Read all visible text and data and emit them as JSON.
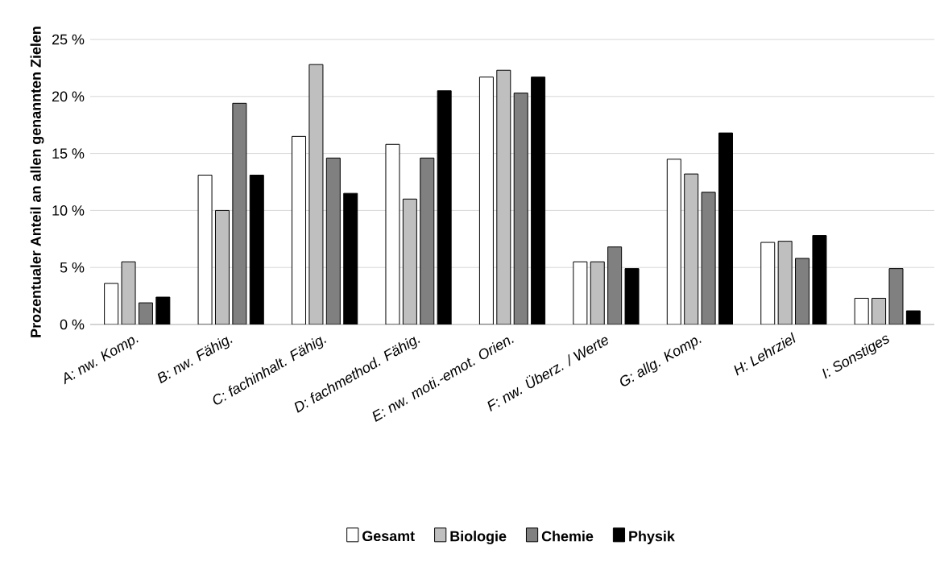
{
  "chart_data": {
    "type": "bar",
    "ylabel": "Prozentualer Anteil an allen genannten Zielen",
    "categories": [
      "A: nw. Komp.",
      "B: nw. Fähig.",
      "C: fachinhalt. Fähig.",
      "D: fachmethod. Fähig.",
      "E: nw. moti.-emot. Orien.",
      "F: nw. Überz. / Werte",
      "G: allg. Komp.",
      "H: Lehrziel",
      "I: Sonstiges"
    ],
    "series": [
      {
        "name": "Gesamt",
        "color": "#ffffff",
        "values": [
          3.6,
          13.1,
          16.5,
          15.8,
          21.7,
          5.5,
          14.5,
          7.2,
          2.3
        ]
      },
      {
        "name": "Biologie",
        "color": "#bfbfbf",
        "values": [
          5.5,
          10.0,
          22.8,
          11.0,
          22.3,
          5.5,
          13.2,
          7.3,
          2.3
        ]
      },
      {
        "name": "Chemie",
        "color": "#808080",
        "values": [
          1.9,
          19.4,
          14.6,
          14.6,
          20.3,
          6.8,
          11.6,
          5.8,
          4.9
        ]
      },
      {
        "name": "Physik",
        "color": "#000000",
        "values": [
          2.4,
          13.1,
          11.5,
          20.5,
          21.7,
          4.9,
          16.8,
          7.8,
          1.2
        ]
      }
    ],
    "ylim": [
      0,
      25
    ],
    "yticks": [
      {
        "value": 0,
        "label": "0 %"
      },
      {
        "value": 5,
        "label": "5 %"
      },
      {
        "value": 10,
        "label": "10 %"
      },
      {
        "value": 15,
        "label": "15 %"
      },
      {
        "value": 20,
        "label": "20 %"
      },
      {
        "value": 25,
        "label": "25 %"
      }
    ],
    "grid": "y",
    "legend": "bottom"
  }
}
